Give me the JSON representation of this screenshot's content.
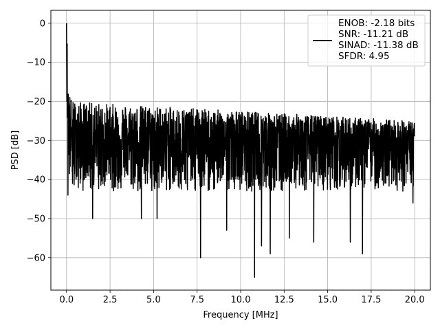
{
  "chart_data": {
    "type": "line",
    "title": "",
    "xlabel": "Frequency [MHz]",
    "ylabel": "PSD [dB]",
    "xlim": [
      -0.9,
      20.9
    ],
    "ylim": [
      -68.3,
      3.3
    ],
    "x_ticks": [
      0.0,
      2.5,
      5.0,
      7.5,
      10.0,
      12.5,
      15.0,
      17.5,
      20.0
    ],
    "x_tick_labels": [
      "0.0",
      "2.5",
      "5.0",
      "7.5",
      "10.0",
      "12.5",
      "15.0",
      "17.5",
      "20.0"
    ],
    "y_ticks": [
      0,
      -10,
      -20,
      -30,
      -40,
      -50,
      -60
    ],
    "y_tick_labels": [
      "0",
      "−10",
      "−20",
      "−30",
      "−40",
      "−50",
      "−60"
    ],
    "grid": true,
    "legend_position": "top-right",
    "legend_entries": [
      {
        "label_lines": [
          "ENOB: -2.18 bits",
          "SNR: -11.21 dB",
          "SINAD: -11.38 dB",
          "SFDR: 4.95"
        ],
        "color": "#000000"
      }
    ],
    "series": [
      {
        "color": "#000000",
        "x_range": [
          0.0,
          20.0
        ],
        "peak": {
          "x": 0.0,
          "y": 0.0
        },
        "noise_floor_db": -30,
        "upper_envelope_db": [
          -20,
          -25
        ],
        "lower_envelope_db": [
          -40,
          -45
        ],
        "notable_points": [
          {
            "x": 0.08,
            "y": -44
          },
          {
            "x": 0.35,
            "y": -41
          },
          {
            "x": 1.5,
            "y": -50
          },
          {
            "x": 4.3,
            "y": -50
          },
          {
            "x": 5.2,
            "y": -50
          },
          {
            "x": 7.7,
            "y": -60
          },
          {
            "x": 9.2,
            "y": -53
          },
          {
            "x": 10.8,
            "y": -65
          },
          {
            "x": 11.2,
            "y": -57
          },
          {
            "x": 11.7,
            "y": -59
          },
          {
            "x": 12.8,
            "y": -55
          },
          {
            "x": 14.2,
            "y": -56
          },
          {
            "x": 16.3,
            "y": -56
          },
          {
            "x": 17.0,
            "y": -59
          },
          {
            "x": 19.9,
            "y": -46
          }
        ]
      }
    ]
  }
}
